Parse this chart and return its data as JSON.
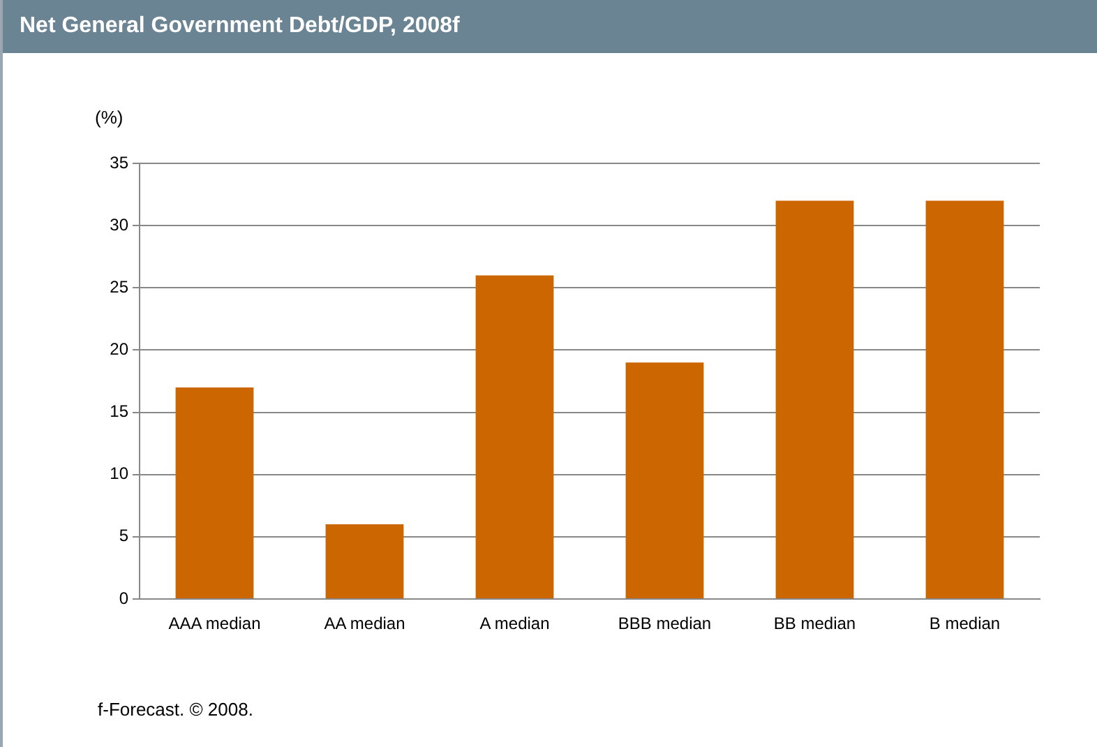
{
  "chart_data": {
    "type": "bar",
    "title": "Net General Government Debt/GDP, 2008f",
    "ylabel": "(%)",
    "categories": [
      "AAA median",
      "AA median",
      "A median",
      "BBB median",
      "BB median",
      "B median"
    ],
    "values": [
      17,
      6,
      26,
      19,
      32,
      32
    ],
    "color": "#cc6600",
    "ylim": [
      0,
      35
    ],
    "yticks": [
      0,
      5,
      10,
      15,
      20,
      25,
      30,
      35
    ],
    "grid": "y",
    "legend": false,
    "annotations": [
      "f-Forecast. © 2008."
    ]
  }
}
